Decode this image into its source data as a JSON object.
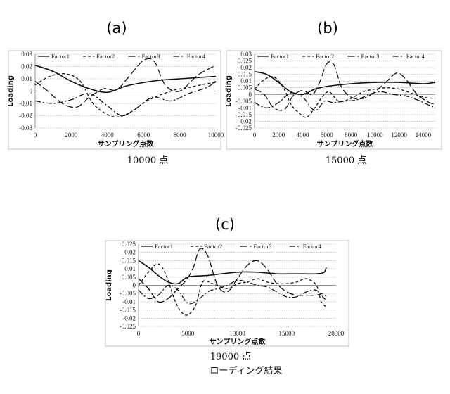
{
  "panels": [
    {
      "label": "(a)",
      "caption": "10000 点"
    },
    {
      "label": "(b)",
      "caption": "15000 点"
    },
    {
      "label": "(c)",
      "caption": "19000 点"
    }
  ],
  "figure_caption": "ローディング結果",
  "colors": {
    "line": "#111111",
    "grid": "#9a9a9a",
    "frame": "#b5b5b5"
  },
  "chart_data": [
    {
      "type": "line",
      "xlabel": "サンプリング点数",
      "ylabel": "Loading",
      "xlim": [
        0,
        10000
      ],
      "ylim": [
        -0.03,
        0.03
      ],
      "xticks": [
        "0",
        "2000",
        "4000",
        "6000",
        "8000",
        "10000"
      ],
      "yticks": [
        "0.03",
        "0.02",
        "0.01",
        "0",
        "-0.01",
        "-0.02",
        "-0.03"
      ],
      "legend": "top",
      "series": [
        {
          "name": "Factor1",
          "x": [
            0,
            1000,
            2000,
            3000,
            4000,
            5000,
            6000,
            7000,
            8000,
            9000,
            10000
          ],
          "y": [
            0.021,
            0.016,
            0.008,
            0.002,
            -0.001,
            0.004,
            0.007,
            0.009,
            0.01,
            0.011,
            0.012
          ]
        },
        {
          "name": "Factor2",
          "x": [
            0,
            800,
            1700,
            2500,
            3200,
            4000,
            4600,
            5300,
            6200,
            7500,
            8500,
            9500,
            10000
          ],
          "y": [
            0.005,
            0.012,
            0.014,
            0.008,
            -0.01,
            -0.019,
            -0.021,
            -0.017,
            -0.008,
            0.0,
            0.003,
            0.006,
            0.007
          ]
        },
        {
          "name": "Factor3",
          "x": [
            0,
            700,
            1500,
            2300,
            3000,
            3800,
            4500,
            5200,
            6000,
            6600,
            7200,
            8000,
            9000,
            10000
          ],
          "y": [
            0.008,
            0.0,
            -0.01,
            -0.013,
            -0.005,
            0.002,
            0.001,
            0.012,
            0.025,
            0.024,
            0.005,
            0.0,
            0.013,
            0.021
          ]
        },
        {
          "name": "Factor4",
          "x": [
            0,
            1000,
            2000,
            3000,
            4000,
            4800,
            5500,
            6500,
            7500,
            8500,
            9500,
            10000
          ],
          "y": [
            -0.008,
            -0.01,
            -0.007,
            -0.002,
            -0.012,
            -0.02,
            -0.015,
            -0.005,
            -0.008,
            -0.002,
            0.003,
            0.008
          ]
        }
      ]
    },
    {
      "type": "line",
      "xlabel": "サンプリング点数",
      "ylabel": "Loading",
      "xlim": [
        0,
        15000
      ],
      "ylim": [
        -0.025,
        0.03
      ],
      "xticks": [
        "0",
        "2000",
        "4000",
        "6000",
        "8000",
        "10000",
        "12000",
        "14000"
      ],
      "yticks": [
        "0.03",
        "0.025",
        "0.02",
        "0.015",
        "0.01",
        "0.005",
        "0",
        "-0.005",
        "-0.01",
        "-0.015",
        "-0.02",
        "-0.025"
      ],
      "legend": "top",
      "series": [
        {
          "name": "Factor1",
          "x": [
            0,
            1000,
            2000,
            3000,
            4000,
            5000,
            6000,
            8000,
            10000,
            12000,
            14000,
            15000
          ],
          "y": [
            0.017,
            0.015,
            0.009,
            0.002,
            0.0,
            0.004,
            0.006,
            0.008,
            0.009,
            0.009,
            0.008,
            0.009
          ]
        },
        {
          "name": "Factor2",
          "x": [
            0,
            800,
            1600,
            2400,
            3000,
            3600,
            4300,
            5000,
            5600,
            6200,
            7000,
            8000,
            9000,
            10000,
            11000,
            12000,
            13000,
            14000,
            15000
          ],
          "y": [
            0.004,
            0.011,
            0.013,
            0.005,
            -0.007,
            -0.013,
            -0.017,
            -0.01,
            -0.002,
            0.002,
            -0.005,
            -0.003,
            0.002,
            0.004,
            0.005,
            0.004,
            0.001,
            -0.002,
            -0.003
          ]
        },
        {
          "name": "Factor3",
          "x": [
            0,
            800,
            1600,
            2500,
            3200,
            4000,
            4800,
            5400,
            6000,
            6600,
            7200,
            8000,
            9000,
            10000,
            11000,
            11800,
            12500,
            13500,
            14500,
            15000
          ],
          "y": [
            0.004,
            0.0,
            -0.01,
            -0.011,
            -0.001,
            0.003,
            0.0,
            0.009,
            0.023,
            0.022,
            0.006,
            -0.002,
            -0.003,
            0.002,
            0.01,
            0.016,
            0.012,
            0.0,
            -0.006,
            -0.007
          ]
        },
        {
          "name": "Factor4",
          "x": [
            0,
            1000,
            2000,
            3000,
            4000,
            5000,
            5800,
            6500,
            7500,
            8500,
            9500,
            10500,
            11500,
            12500,
            13500,
            14500,
            15000
          ],
          "y": [
            -0.006,
            -0.01,
            -0.006,
            0.001,
            -0.002,
            -0.012,
            -0.005,
            -0.006,
            -0.005,
            -0.004,
            0.0,
            0.002,
            0.0,
            -0.001,
            -0.004,
            -0.008,
            -0.01
          ]
        }
      ]
    },
    {
      "type": "line",
      "xlabel": "サンプリング点数",
      "ylabel": "Loading",
      "xlim": [
        0,
        20000
      ],
      "ylim": [
        -0.025,
        0.025
      ],
      "xticks": [
        "0",
        "5000",
        "10000",
        "15000",
        "20000"
      ],
      "yticks": [
        "0.025",
        "0.02",
        "0.015",
        "0.01",
        "0.005",
        "0",
        "-0.005",
        "-0.01",
        "-0.015",
        "-0.02",
        "-0.025"
      ],
      "legend": "top",
      "series": [
        {
          "name": "Factor1",
          "x": [
            0,
            1000,
            2000,
            3000,
            4000,
            5000,
            7000,
            10000,
            12000,
            14000,
            16000,
            18000,
            18800,
            19000
          ],
          "y": [
            0.015,
            0.011,
            0.006,
            0.002,
            0.001,
            0.005,
            0.006,
            0.008,
            0.008,
            0.007,
            0.007,
            0.007,
            0.008,
            0.011
          ]
        },
        {
          "name": "Factor2",
          "x": [
            0,
            1000,
            2000,
            2800,
            3600,
            4300,
            5000,
            5800,
            6500,
            7500,
            9000,
            10000,
            11000,
            12000,
            13000,
            14000,
            15000,
            16000,
            17000,
            18000,
            18500,
            19000
          ],
          "y": [
            0.0,
            0.008,
            0.013,
            0.006,
            -0.008,
            -0.016,
            -0.018,
            -0.012,
            0.002,
            0.001,
            -0.002,
            0.001,
            0.002,
            0.004,
            0.002,
            0.001,
            0.001,
            0.002,
            0.004,
            0.0,
            -0.01,
            -0.013
          ]
        },
        {
          "name": "Factor3",
          "x": [
            0,
            1000,
            2000,
            3000,
            4000,
            4800,
            5500,
            6200,
            7000,
            8000,
            9000,
            10000,
            11000,
            12000,
            13000,
            14000,
            15000,
            16000,
            17000,
            18000,
            18700,
            19000
          ],
          "y": [
            0.004,
            -0.002,
            -0.01,
            -0.008,
            -0.002,
            0.003,
            0.01,
            0.022,
            0.018,
            0.0,
            -0.004,
            0.004,
            0.012,
            0.015,
            0.01,
            0.001,
            -0.004,
            -0.006,
            -0.006,
            -0.006,
            -0.005,
            -0.007
          ]
        },
        {
          "name": "Factor4",
          "x": [
            0,
            1000,
            2000,
            3000,
            4000,
            5000,
            6000,
            7000,
            8000,
            9000,
            10000,
            11000,
            12000,
            13000,
            14000,
            15000,
            16000,
            17000,
            18000,
            18800,
            19000
          ],
          "y": [
            -0.003,
            -0.008,
            -0.006,
            0.0,
            -0.003,
            -0.011,
            -0.009,
            -0.004,
            -0.002,
            0.0,
            0.003,
            0.002,
            0.0,
            -0.001,
            -0.004,
            -0.007,
            -0.007,
            -0.004,
            -0.003,
            -0.008,
            -0.008
          ]
        }
      ]
    }
  ]
}
